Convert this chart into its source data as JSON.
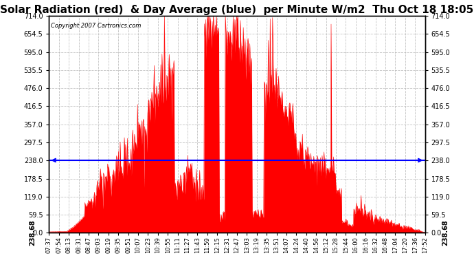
{
  "title": "Solar Radiation (red)  & Day Average (blue)  per Minute W/m2  Thu Oct 18 18:05",
  "copyright": "Copyright 2007 Cartronics.com",
  "day_average": 238.68,
  "y_ticks": [
    0.0,
    59.5,
    119.0,
    178.5,
    238.0,
    297.5,
    357.0,
    416.5,
    476.0,
    535.5,
    595.0,
    654.5,
    714.0
  ],
  "y_min": 0.0,
  "y_max": 714.0,
  "fill_color": "#FF0000",
  "avg_line_color": "#0000FF",
  "background_color": "#FFFFFF",
  "grid_color": "#BBBBBB",
  "title_fontsize": 11,
  "x_labels": [
    "07:37",
    "07:54",
    "08:13",
    "08:31",
    "08:47",
    "09:03",
    "09:19",
    "09:35",
    "09:51",
    "10:07",
    "10:23",
    "10:39",
    "10:55",
    "11:11",
    "11:27",
    "11:43",
    "11:59",
    "12:15",
    "12:31",
    "12:47",
    "13:03",
    "13:19",
    "13:35",
    "13:51",
    "14:07",
    "14:24",
    "14:40",
    "14:56",
    "15:12",
    "15:28",
    "15:44",
    "16:00",
    "16:16",
    "16:32",
    "16:48",
    "17:04",
    "17:20",
    "17:36",
    "17:52"
  ]
}
